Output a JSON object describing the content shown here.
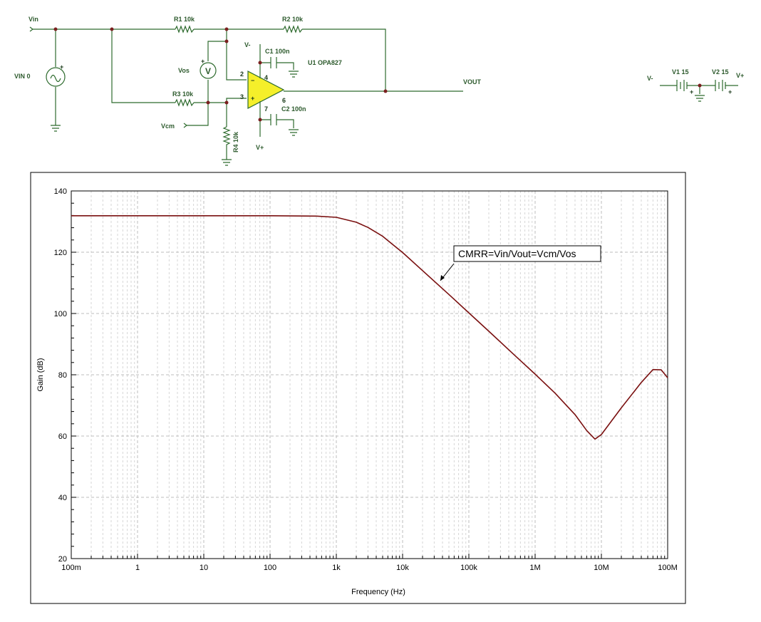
{
  "schematic": {
    "labels": {
      "vin": "Vin",
      "vg": "VIN 0",
      "r1": "R1 10k",
      "r2": "R2 10k",
      "r3": "R3 10k",
      "r4": "R4 10k",
      "vos": "Vos",
      "vos_meter": "V",
      "vcm": "Vcm",
      "vminus": "V-",
      "vplus": "V+",
      "c1": "C1 100n",
      "c2": "C2 100n",
      "u1": "U1 OPA827",
      "vout": "VOUT",
      "pin2": "2",
      "pin3": "3",
      "pin4": "4",
      "pin6": "6",
      "pin7": "7",
      "opamp_minus": "−",
      "opamp_plus": "+",
      "meter_plus": "+",
      "gen_plus": "+",
      "supply_vminus": "V-",
      "supply_v1": "V1 15",
      "supply_v2": "V2 15",
      "supply_vplus": "V+",
      "supply_plus1": "+",
      "supply_plus2": "+"
    }
  },
  "chart_data": {
    "type": "line",
    "xlabel": "Frequency (Hz)",
    "ylabel": "Gain (dB)",
    "xscale": "log",
    "xlim": [
      0.1,
      100000000
    ],
    "ylim": [
      20,
      140
    ],
    "x_tick_labels": [
      "100m",
      "1",
      "10",
      "100",
      "1k",
      "10k",
      "100k",
      "1M",
      "10M",
      "100M"
    ],
    "y_tick_labels": [
      "20",
      "40",
      "60",
      "80",
      "100",
      "120",
      "140"
    ],
    "y_ticks": [
      20,
      40,
      60,
      80,
      100,
      120,
      140
    ],
    "grid": true,
    "line_color": "#7a1010",
    "annotation": "CMRR=Vin/Vout=Vcm/Vos",
    "series": [
      {
        "x": [
          0.1,
          1,
          10,
          100,
          500,
          1000,
          2000,
          3000,
          5000,
          7000,
          10000,
          20000,
          50000,
          100000,
          200000,
          500000,
          1000000,
          2000000,
          4000000,
          6000000,
          8000000,
          10000000,
          20000000,
          40000000,
          60000000,
          80000000,
          100000000
        ],
        "y": [
          131.9,
          131.9,
          131.9,
          131.9,
          131.8,
          131.4,
          129.8,
          128.1,
          125.2,
          122.6,
          119.9,
          114.0,
          106.2,
          100.2,
          94.2,
          86.2,
          80.2,
          74.0,
          67.0,
          61.8,
          59.0,
          60.5,
          69.2,
          77.5,
          81.7,
          81.6,
          79.0
        ]
      }
    ]
  }
}
